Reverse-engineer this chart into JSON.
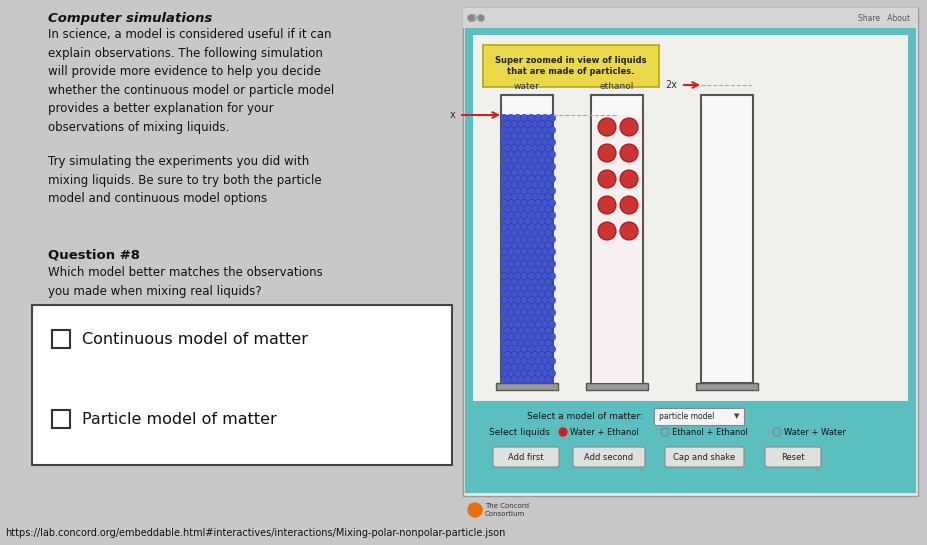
{
  "bg_color": "#c8c8c8",
  "title": "Computer simulations",
  "para1": "In science, a model is considered useful if it can\nexplain observations. The following simulation\nwill provide more evidence to help you decide\nwhether the continuous model or particle model\nprovides a better explanation for your\nobservations of mixing liquids.",
  "para2": "Try simulating the experiments you did with\nmixing liquids. Be sure to try both the particle\nmodel and continuous model options",
  "q_title": "Question #8",
  "q_text": "Which model better matches the observations\nyou made when mixing real liquids?",
  "checkbox1": "Continuous model of matter",
  "checkbox2": "Particle model of matter",
  "url": "https://lab.concord.org/embeddable.html#interactives/interactions/Mixing-polar-nonpolar-particle.json",
  "sim_footer_bg": "#5bbfbf",
  "sim_teal_border": "#5bbfbf",
  "sim_inner_bg": "#f0f0ec",
  "yellow_box_text": "Super zoomed in view of liquids\nthat are made of particles.",
  "yellow_box_color": "#e8d84a",
  "water_color": "#5555cc",
  "water_dark": "#3333aa",
  "ethanol_color": "#cc3333",
  "ethanol_dark": "#aa1111",
  "arrow_color": "#cc2222",
  "browser_bar_bg": "#d5d5d5",
  "browser_frame_bg": "#e8e8e8"
}
